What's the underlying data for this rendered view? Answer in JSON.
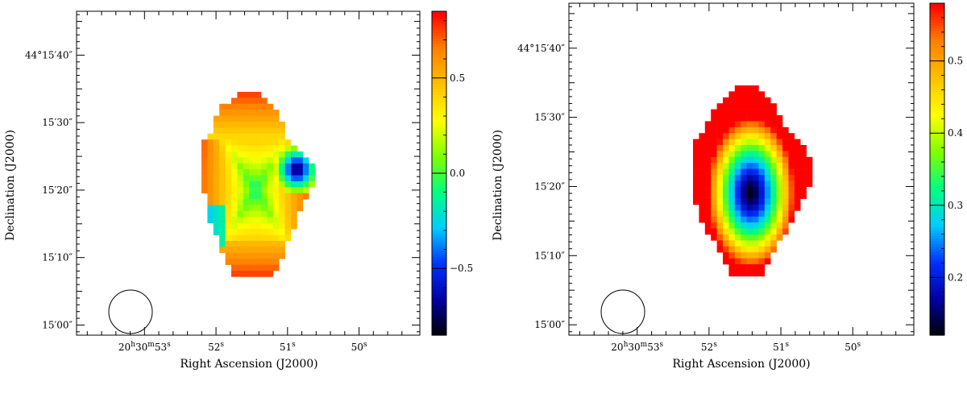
{
  "figure": {
    "panels": [
      {
        "id": "left",
        "xlabel": "Right Ascension (J2000)",
        "ylabel": "Declination (J2000)",
        "x_ticks": [
          {
            "label_h": "20",
            "label_m": "30",
            "label_s": "53",
            "full": true,
            "value": 53
          },
          {
            "label_s": "52",
            "value": 52
          },
          {
            "label_s": "51",
            "value": 51
          },
          {
            "label_s": "50",
            "value": 50
          }
        ],
        "y_ticks": [
          {
            "label": "44°15′40″",
            "value": 40
          },
          {
            "label": "15′30″",
            "value": 30
          },
          {
            "label": "15′20″",
            "value": 20
          },
          {
            "label": "15′10″",
            "value": 10
          },
          {
            "label": "15′00″",
            "value": 0
          }
        ],
        "colorbar": {
          "min": -0.85,
          "max": 0.85,
          "ticks": [
            {
              "label": "0.5",
              "value": 0.5
            },
            {
              "label": "0.0",
              "value": 0.0
            },
            {
              "label": "−0.5",
              "value": -0.5
            }
          ],
          "colormap": [
            "#000000",
            "#0000a0",
            "#0030ff",
            "#00ccff",
            "#00ff80",
            "#80ff00",
            "#ffff00",
            "#ffc000",
            "#ff8000",
            "#ff0000"
          ]
        }
      },
      {
        "id": "right",
        "xlabel": "Right Ascension (J2000)",
        "ylabel": "Declination (J2000)",
        "x_ticks": [
          {
            "label_h": "20",
            "label_m": "30",
            "label_s": "53",
            "full": true,
            "value": 53
          },
          {
            "label_s": "52",
            "value": 52
          },
          {
            "label_s": "51",
            "value": 51
          },
          {
            "label_s": "50",
            "value": 50
          }
        ],
        "y_ticks": [
          {
            "label": "44°15′40″",
            "value": 40
          },
          {
            "label": "15′30″",
            "value": 30
          },
          {
            "label": "15′20″",
            "value": 20
          },
          {
            "label": "15′10″",
            "value": 10
          },
          {
            "label": "15′00″",
            "value": 0
          }
        ],
        "colorbar": {
          "min": 0.12,
          "max": 0.58,
          "ticks": [
            {
              "label": "0.5",
              "value": 0.5
            },
            {
              "label": "0.4",
              "value": 0.4
            },
            {
              "label": "0.3",
              "value": 0.3
            },
            {
              "label": "0.2",
              "value": 0.2
            }
          ],
          "colormap": [
            "#000000",
            "#0000a0",
            "#0030ff",
            "#00ccff",
            "#00ff80",
            "#80ff00",
            "#ffff00",
            "#ffc000",
            "#ff8000",
            "#ff0000"
          ]
        }
      }
    ]
  },
  "chart_data": [
    {
      "type": "heatmap",
      "xlabel": "Right Ascension (J2000)",
      "ylabel": "Declination (J2000)",
      "x_range_seconds": [
        53.8,
        49.2
      ],
      "y_range_arcsec": [
        -2,
        46
      ],
      "value_range": [
        -0.85,
        0.85
      ],
      "region": "polygon-shaped map, value pattern: red at top and bottom rims, orange/yellow upper-left, green band across center, cyan lower-left, blue/black pocket at right middle",
      "beam": "circle near lower-left"
    },
    {
      "type": "heatmap",
      "xlabel": "Right Ascension (J2000)",
      "ylabel": "Declination (J2000)",
      "x_range_seconds": [
        53.8,
        49.2
      ],
      "y_range_arcsec": [
        -2,
        46
      ],
      "value_range": [
        0.12,
        0.58
      ],
      "region": "radial pattern: black minimum near center, rising through blue, cyan, green, yellow to red at the rim",
      "beam": "circle near lower-left"
    }
  ]
}
